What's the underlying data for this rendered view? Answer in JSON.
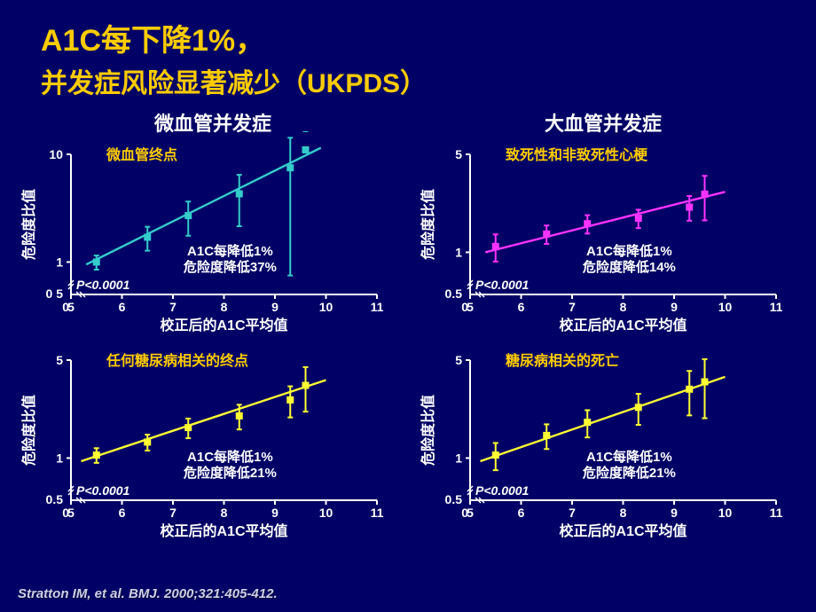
{
  "title": {
    "line1_accent": "A1C每下降1%，",
    "line2": "并发症风险显著减少（UKPDS）"
  },
  "columns": {
    "left": "微血管并发症",
    "right": "大血管并发症"
  },
  "axis": {
    "y_label": "危险度比值",
    "x_label": "校正后的A1C平均值"
  },
  "pval": "P<0.0001",
  "annot_prefix": "A1C每降低1%",
  "charts": [
    {
      "id": "micro_endpoint",
      "row": 0,
      "col": 0,
      "legend": "微血管终点",
      "legend_color": "#ffcc00",
      "color": "#33cccc",
      "annot_value": "危险度降低37%",
      "y_scale": "log",
      "ylim": [
        0.5,
        10
      ],
      "y_lower_label": "0 5",
      "yticks": [
        {
          "v": 1,
          "l": "1"
        },
        {
          "v": 10,
          "l": "10"
        }
      ],
      "xlim": [
        5,
        11
      ],
      "xticks": [
        0,
        5,
        6,
        7,
        8,
        9,
        10,
        11
      ],
      "points": [
        {
          "x": 5.5,
          "y": 1.0,
          "err": 0.15
        },
        {
          "x": 6.5,
          "y": 1.7,
          "err": 0.25
        },
        {
          "x": 7.3,
          "y": 2.7,
          "err": 0.35
        },
        {
          "x": 8.3,
          "y": 4.3,
          "err": 0.5
        },
        {
          "x": 9.3,
          "y": 7.5,
          "err": 0.9
        },
        {
          "x": 9.6,
          "y": 11.0,
          "err": 1.4
        }
      ],
      "line": {
        "x1": 5.3,
        "y1": 0.95,
        "x2": 9.9,
        "y2": 11.5
      }
    },
    {
      "id": "mi",
      "row": 0,
      "col": 1,
      "legend": "致死性和非致死性心梗",
      "legend_color": "#ffcc00",
      "color": "#ff33ff",
      "annot_value": "危险度降低14%",
      "y_scale": "log",
      "ylim": [
        0.5,
        5
      ],
      "y_lower_label": "0.5",
      "yticks": [
        {
          "v": 1,
          "l": "1"
        },
        {
          "v": 5,
          "l": "5"
        }
      ],
      "xlim": [
        5,
        11
      ],
      "xticks": [
        0,
        5,
        6,
        7,
        8,
        9,
        10,
        11
      ],
      "points": [
        {
          "x": 5.5,
          "y": 1.1,
          "err": 0.22
        },
        {
          "x": 6.5,
          "y": 1.35,
          "err": 0.15
        },
        {
          "x": 7.3,
          "y": 1.6,
          "err": 0.15
        },
        {
          "x": 8.3,
          "y": 1.75,
          "err": 0.15
        },
        {
          "x": 9.3,
          "y": 2.1,
          "err": 0.2
        },
        {
          "x": 9.6,
          "y": 2.6,
          "err": 0.35
        }
      ],
      "line": {
        "x1": 5.3,
        "y1": 1.0,
        "x2": 10.0,
        "y2": 2.7
      }
    },
    {
      "id": "any_endpoint",
      "row": 1,
      "col": 0,
      "legend": "任何糖尿病相关的终点",
      "legend_color": "#ffcc00",
      "color": "#ffff33",
      "annot_value": "危险度降低21%",
      "y_scale": "log",
      "ylim": [
        0.5,
        5
      ],
      "y_lower_label": "0.5",
      "yticks": [
        {
          "v": 1,
          "l": "1"
        },
        {
          "v": 5,
          "l": "5"
        }
      ],
      "xlim": [
        5,
        11
      ],
      "xticks": [
        0,
        5,
        6,
        7,
        8,
        9,
        10,
        11
      ],
      "points": [
        {
          "x": 5.5,
          "y": 1.05,
          "err": 0.12
        },
        {
          "x": 6.5,
          "y": 1.3,
          "err": 0.13
        },
        {
          "x": 7.3,
          "y": 1.65,
          "err": 0.16
        },
        {
          "x": 8.3,
          "y": 2.0,
          "err": 0.2
        },
        {
          "x": 9.3,
          "y": 2.6,
          "err": 0.25
        },
        {
          "x": 9.6,
          "y": 3.3,
          "err": 0.35
        }
      ],
      "line": {
        "x1": 5.2,
        "y1": 0.95,
        "x2": 10.0,
        "y2": 3.6
      }
    },
    {
      "id": "death",
      "row": 1,
      "col": 1,
      "legend": "糖尿病相关的死亡",
      "legend_color": "#ffcc00",
      "color": "#ffff33",
      "annot_value": "危险度降低21%",
      "y_scale": "log",
      "ylim": [
        0.5,
        5
      ],
      "y_lower_label": "0.5",
      "yticks": [
        {
          "v": 1,
          "l": "1"
        },
        {
          "v": 5,
          "l": "5"
        }
      ],
      "xlim": [
        5,
        11
      ],
      "xticks": [
        0,
        5,
        6,
        7,
        8,
        9,
        10,
        11
      ],
      "points": [
        {
          "x": 5.5,
          "y": 1.05,
          "err": 0.22
        },
        {
          "x": 6.5,
          "y": 1.45,
          "err": 0.2
        },
        {
          "x": 7.3,
          "y": 1.8,
          "err": 0.22
        },
        {
          "x": 8.3,
          "y": 2.3,
          "err": 0.25
        },
        {
          "x": 9.3,
          "y": 3.1,
          "err": 0.35
        },
        {
          "x": 9.6,
          "y": 3.5,
          "err": 0.45
        }
      ],
      "line": {
        "x1": 5.2,
        "y1": 0.95,
        "x2": 10.0,
        "y2": 3.8
      }
    }
  ],
  "citation": "Stratton IM, et al. BMJ. 2000;321:405-412.",
  "style": {
    "bg": "#000066",
    "axis_color": "#ffffff",
    "text_color": "#ffffff",
    "tick_fontsize": 14,
    "label_fontsize": 16,
    "legend_fontsize": 16,
    "marker_size": 8,
    "line_width": 2.4,
    "err_cap": 6
  }
}
